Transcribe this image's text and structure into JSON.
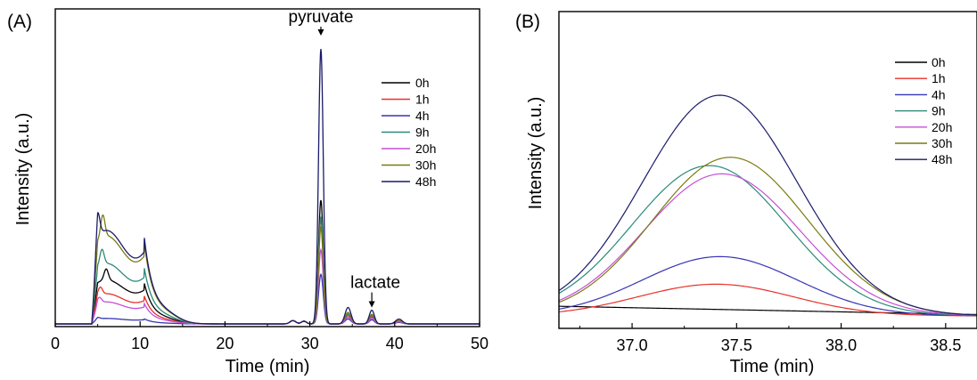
{
  "chart_data": [
    {
      "panel": "(A)",
      "type": "line",
      "xlabel": "Time (min)",
      "ylabel": "Intensity (a.u.)",
      "xlim": [
        0,
        50
      ],
      "ylim": [
        0,
        1
      ],
      "xticks": [
        "0",
        "10",
        "20",
        "30",
        "40",
        "50"
      ],
      "grid": false,
      "legend": "right",
      "annotations": [
        {
          "text": "pyruvate",
          "x": 31.3
        },
        {
          "text": "lactate",
          "x": 37.3
        }
      ],
      "series": [
        {
          "name": "0h",
          "color": "#000000",
          "early": 0.16,
          "early_pos": 6.0,
          "peak": 0.45,
          "lact": 0.03
        },
        {
          "name": "1h",
          "color": "#e8302a",
          "early": 0.11,
          "early_pos": 5.3,
          "peak": 0.38,
          "lact": 0.025
        },
        {
          "name": "4h",
          "color": "#3535b5",
          "early": 0.02,
          "early_pos": 5.0,
          "peak": 0.18,
          "lact": 0.015
        },
        {
          "name": "9h",
          "color": "#2a8a7a",
          "early": 0.22,
          "early_pos": 5.5,
          "peak": 0.39,
          "lact": 0.03
        },
        {
          "name": "20h",
          "color": "#c54fd6",
          "early": 0.08,
          "early_pos": 5.2,
          "peak": 0.27,
          "lact": 0.02
        },
        {
          "name": "30h",
          "color": "#7a7a10",
          "early": 0.32,
          "early_pos": 5.6,
          "peak": 0.35,
          "lact": 0.035
        },
        {
          "name": "48h",
          "color": "#1a1a6a",
          "early": 0.34,
          "early_pos": 5.0,
          "peak": 1.0,
          "lact": 0.05
        }
      ]
    },
    {
      "panel": "(B)",
      "type": "line",
      "xlabel": "Time (min)",
      "ylabel": "Intensity (a.u.)",
      "xlim": [
        36.65,
        38.65
      ],
      "ylim": [
        0,
        1
      ],
      "xticks": [
        "37.0",
        "37.5",
        "38.0",
        "38.5"
      ],
      "grid": false,
      "legend": "top-right",
      "series": [
        {
          "name": "0h",
          "color": "#000000",
          "amp": 0.0,
          "center": 37.4
        },
        {
          "name": "1h",
          "color": "#e8302a",
          "amp": 0.115,
          "center": 37.4
        },
        {
          "name": "4h",
          "color": "#3535b5",
          "amp": 0.215,
          "center": 37.42
        },
        {
          "name": "9h",
          "color": "#2a8a7a",
          "amp": 0.545,
          "center": 37.37
        },
        {
          "name": "20h",
          "color": "#c54fd6",
          "amp": 0.515,
          "center": 37.43
        },
        {
          "name": "30h",
          "color": "#7a7a10",
          "amp": 0.575,
          "center": 37.47
        },
        {
          "name": "48h",
          "color": "#1a1a6a",
          "amp": 0.8,
          "center": 37.42
        }
      ]
    }
  ]
}
